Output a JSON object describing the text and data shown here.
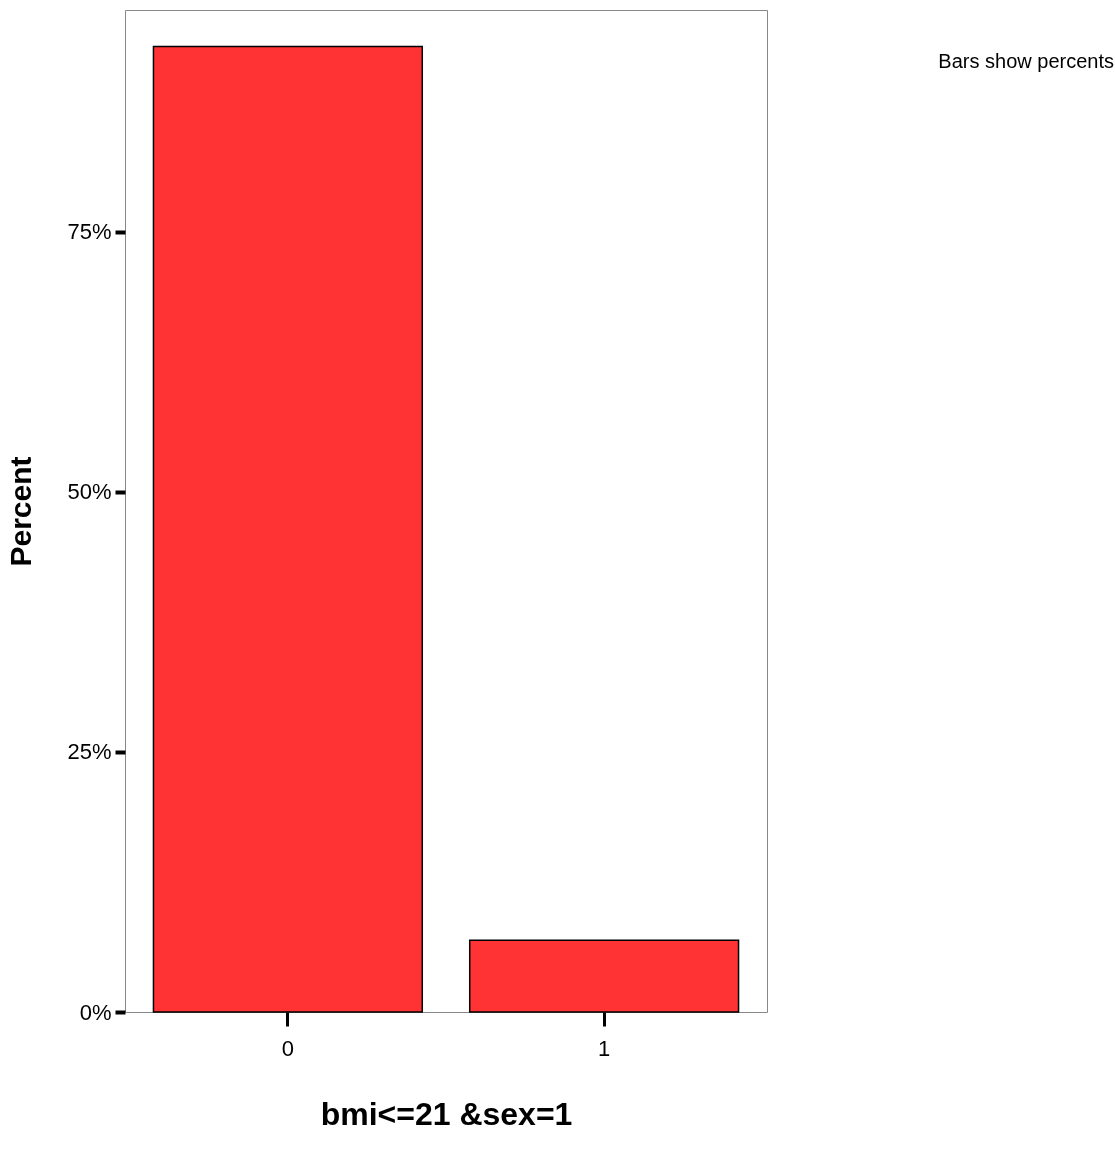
{
  "chart_data": {
    "type": "bar",
    "xlabel": "bmi<=21 &sex=1",
    "ylabel": "Percent",
    "categories": [
      "0",
      "1"
    ],
    "values": [
      92.8,
      6.9
    ],
    "color": "#ff3333",
    "ylim": [
      0,
      96.3
    ],
    "yticks": [
      {
        "value": 0,
        "label": "0%"
      },
      {
        "value": 25,
        "label": "25%"
      },
      {
        "value": 50,
        "label": "50%"
      },
      {
        "value": 75,
        "label": "75%"
      }
    ],
    "grid": false,
    "annotations": [
      "Bars show percents"
    ]
  }
}
